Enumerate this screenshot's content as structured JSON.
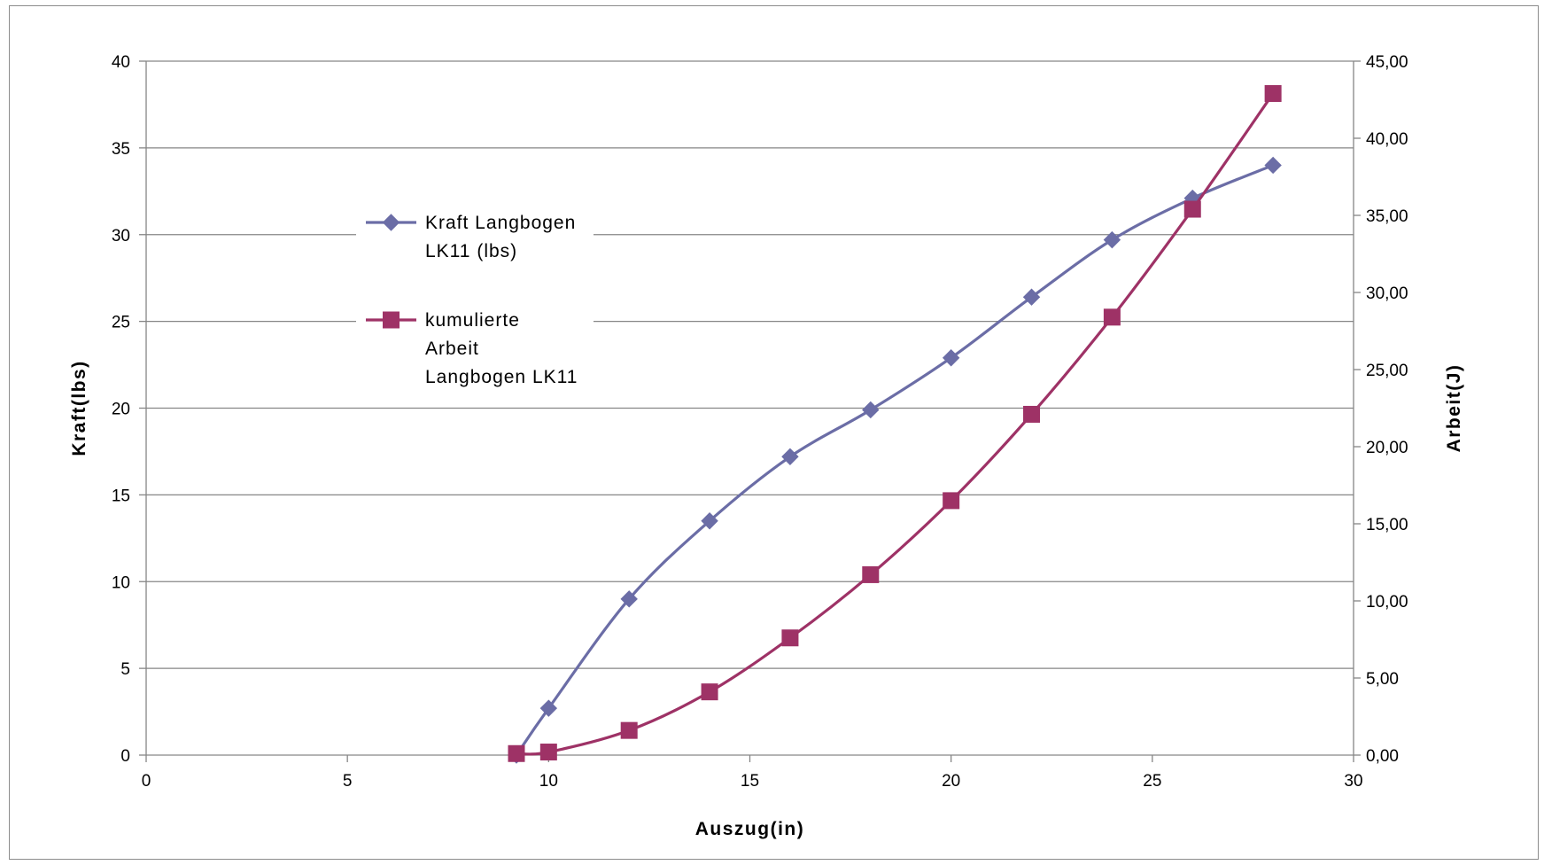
{
  "chart_data": {
    "type": "line",
    "title": "",
    "xlabel": "Auszug(in)",
    "ylabel": "Kraft(lbs)",
    "y2label": "Arbeit(J)",
    "xlim": [
      0,
      30
    ],
    "ylim": [
      0,
      40
    ],
    "y2lim": [
      0,
      45
    ],
    "x_ticks": [
      "0",
      "5",
      "10",
      "15",
      "20",
      "25",
      "30"
    ],
    "y_ticks": [
      "0",
      "5",
      "10",
      "15",
      "20",
      "25",
      "30",
      "35",
      "40"
    ],
    "y2_ticks": [
      "0,00",
      "5,00",
      "10,00",
      "15,00",
      "20,00",
      "25,00",
      "30,00",
      "35,00",
      "40,00",
      "45,00"
    ],
    "grid": true,
    "legend_position": "left-inside",
    "series": [
      {
        "name": "Kraft Langbogen LK11 (lbs)",
        "legend_lines": [
          "Kraft Langbogen",
          "LK11 (lbs)"
        ],
        "axis": "left",
        "color": "#6b6da6",
        "marker": "diamond",
        "x": [
          9.2,
          10,
          12,
          14,
          16,
          18,
          20,
          22,
          24,
          26,
          28
        ],
        "values": [
          0,
          2.7,
          9.0,
          13.5,
          17.2,
          19.9,
          22.9,
          26.4,
          29.7,
          32.1,
          34.0
        ]
      },
      {
        "name": "kumulierte Arbeit Langbogen LK11",
        "legend_lines": [
          "kumulierte",
          "Arbeit",
          "Langbogen LK11"
        ],
        "axis": "right",
        "color": "#9e3266",
        "marker": "square",
        "x": [
          9.2,
          10,
          12,
          14,
          16,
          18,
          20,
          22,
          24,
          26,
          28
        ],
        "values": [
          0.1,
          0.2,
          1.6,
          4.1,
          7.6,
          11.7,
          16.5,
          22.1,
          28.4,
          35.4,
          42.9
        ]
      }
    ]
  }
}
